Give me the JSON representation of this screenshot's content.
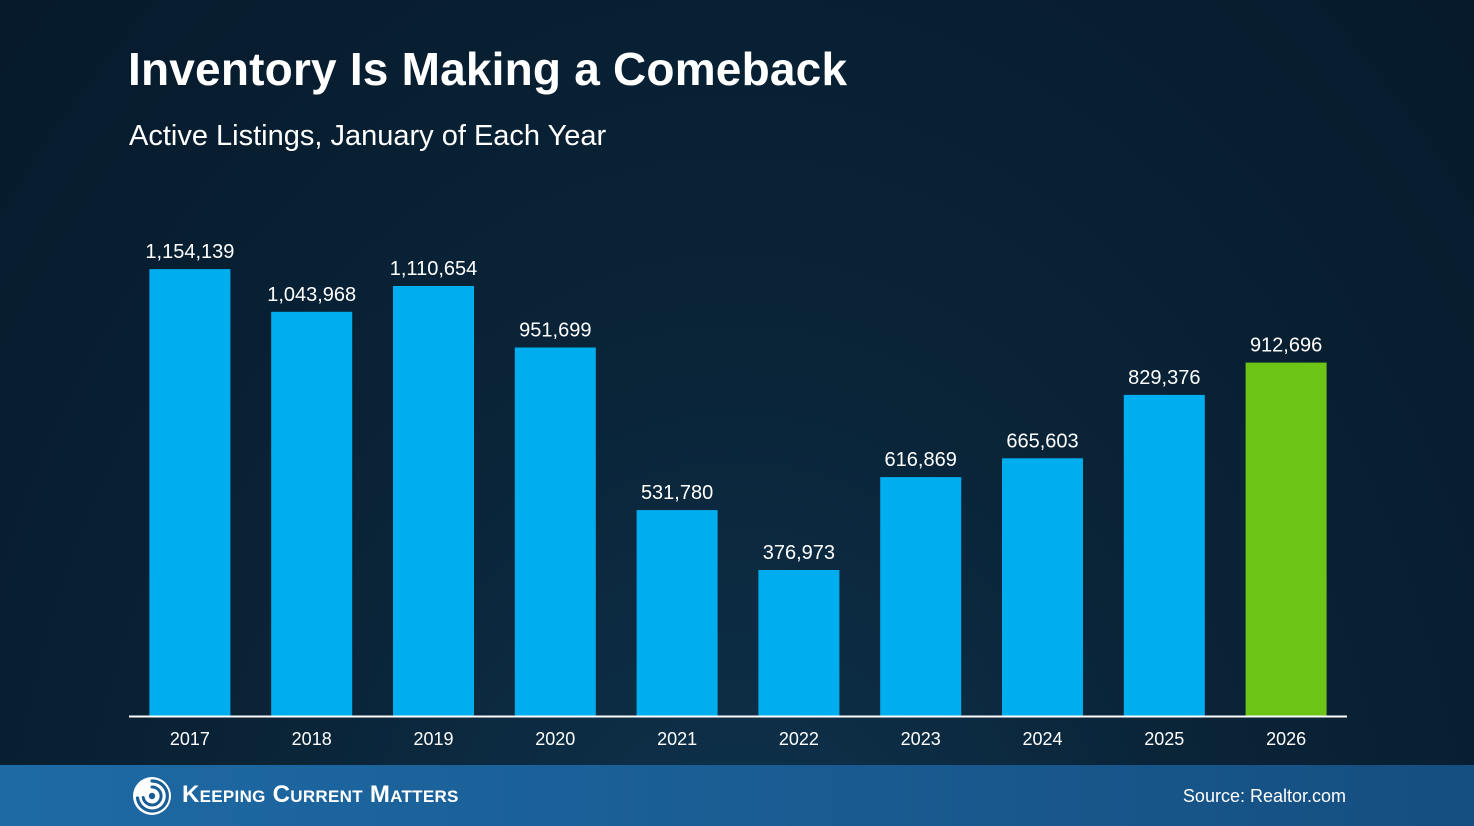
{
  "chart_data": {
    "type": "bar",
    "title": "Inventory Is Making a Comeback",
    "subtitle": "Active Listings, January of Each Year",
    "categories": [
      "2017",
      "2018",
      "2019",
      "2020",
      "2021",
      "2022",
      "2023",
      "2024",
      "2025",
      "2026"
    ],
    "values": [
      1154139,
      1043968,
      1110654,
      951699,
      531780,
      376973,
      616869,
      665603,
      829376,
      912696
    ],
    "data_labels": [
      "1,154,139",
      "1,043,968",
      "1,110,654",
      "951,699",
      "531,780",
      "376,973",
      "616,869",
      "665,603",
      "829,376",
      "912,696"
    ],
    "xlabel": "",
    "ylabel": "",
    "ylim": [
      0,
      1250000
    ],
    "grid": false,
    "legend": "none",
    "colors": {
      "bar": "#00adef",
      "highlight_bar": "#6cc417",
      "highlight_category": "2026",
      "axis": "#ffffff"
    }
  },
  "footer": {
    "brand": "Keeping Current Matters",
    "source": "Source: Realtor.com",
    "logo_icon": "swirl-logo-icon"
  }
}
